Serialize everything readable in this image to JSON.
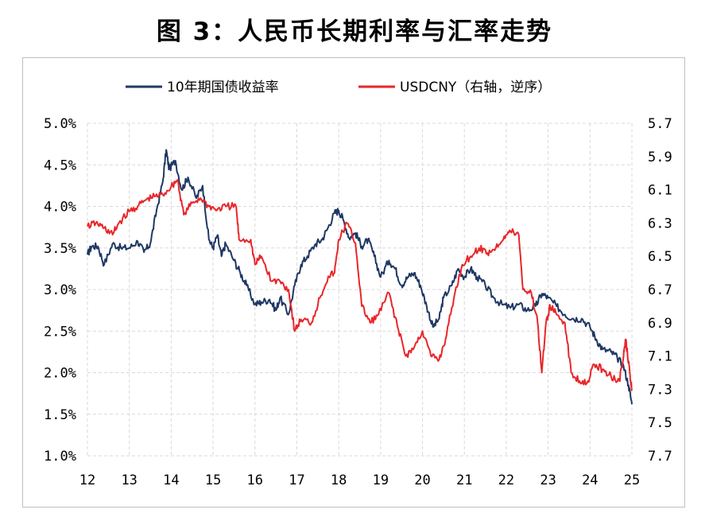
{
  "figure_title": "图 3：人民币长期利率与汇率走势",
  "chart_data": {
    "type": "line",
    "title": "图 3：人民币长期利率与汇率走势",
    "xlabel": "",
    "x_tick_labels": [
      "12",
      "13",
      "14",
      "15",
      "16",
      "17",
      "18",
      "19",
      "20",
      "21",
      "22",
      "23",
      "24",
      "25"
    ],
    "x_range": [
      2012,
      2025
    ],
    "grid": true,
    "legend": "top",
    "left_axis": {
      "label": "10年期国债收益率",
      "ylim": [
        1.0,
        5.0
      ],
      "tick_values": [
        1.0,
        1.5,
        2.0,
        2.5,
        3.0,
        3.5,
        4.0,
        4.5,
        5.0
      ],
      "tick_labels": [
        "1.0%",
        "1.5%",
        "2.0%",
        "2.5%",
        "3.0%",
        "3.5%",
        "4.0%",
        "4.5%",
        "5.0%"
      ]
    },
    "right_axis": {
      "label": "USDCNY（右轴，逆序）",
      "ylim": [
        5.7,
        7.7
      ],
      "inverted": true,
      "tick_values": [
        5.7,
        5.9,
        6.1,
        6.3,
        6.5,
        6.7,
        6.9,
        7.1,
        7.3,
        7.5,
        7.7
      ],
      "tick_labels": [
        "5.7",
        "5.9",
        "6.1",
        "6.3",
        "6.5",
        "6.7",
        "6.9",
        "7.1",
        "7.3",
        "7.5",
        "7.7"
      ]
    },
    "series": [
      {
        "name": "10年期国债收益率",
        "axis": "left",
        "color": "#1f3864",
        "points": [
          [
            2012.0,
            3.42
          ],
          [
            2012.1,
            3.52
          ],
          [
            2012.25,
            3.52
          ],
          [
            2012.4,
            3.3
          ],
          [
            2012.6,
            3.55
          ],
          [
            2012.8,
            3.5
          ],
          [
            2013.0,
            3.5
          ],
          [
            2013.2,
            3.58
          ],
          [
            2013.35,
            3.45
          ],
          [
            2013.5,
            3.55
          ],
          [
            2013.65,
            3.95
          ],
          [
            2013.8,
            4.3
          ],
          [
            2013.88,
            4.68
          ],
          [
            2013.95,
            4.45
          ],
          [
            2014.1,
            4.55
          ],
          [
            2014.25,
            4.2
          ],
          [
            2014.4,
            4.35
          ],
          [
            2014.6,
            4.1
          ],
          [
            2014.75,
            4.25
          ],
          [
            2014.9,
            3.6
          ],
          [
            2015.0,
            3.5
          ],
          [
            2015.1,
            3.65
          ],
          [
            2015.2,
            3.4
          ],
          [
            2015.3,
            3.55
          ],
          [
            2015.5,
            3.35
          ],
          [
            2015.65,
            3.2
          ],
          [
            2015.8,
            3.05
          ],
          [
            2016.0,
            2.82
          ],
          [
            2016.15,
            2.85
          ],
          [
            2016.35,
            2.88
          ],
          [
            2016.5,
            2.75
          ],
          [
            2016.6,
            2.9
          ],
          [
            2016.8,
            2.7
          ],
          [
            2016.95,
            3.05
          ],
          [
            2017.1,
            3.3
          ],
          [
            2017.25,
            3.4
          ],
          [
            2017.45,
            3.55
          ],
          [
            2017.6,
            3.6
          ],
          [
            2017.75,
            3.75
          ],
          [
            2017.9,
            3.92
          ],
          [
            2018.0,
            3.95
          ],
          [
            2018.1,
            3.85
          ],
          [
            2018.25,
            3.62
          ],
          [
            2018.4,
            3.68
          ],
          [
            2018.55,
            3.52
          ],
          [
            2018.7,
            3.6
          ],
          [
            2018.85,
            3.4
          ],
          [
            2019.0,
            3.15
          ],
          [
            2019.2,
            3.35
          ],
          [
            2019.35,
            3.25
          ],
          [
            2019.5,
            3.05
          ],
          [
            2019.65,
            3.15
          ],
          [
            2019.8,
            3.2
          ],
          [
            2019.95,
            3.05
          ],
          [
            2020.1,
            2.8
          ],
          [
            2020.25,
            2.55
          ],
          [
            2020.4,
            2.65
          ],
          [
            2020.5,
            2.9
          ],
          [
            2020.7,
            3.05
          ],
          [
            2020.85,
            3.25
          ],
          [
            2021.0,
            3.15
          ],
          [
            2021.15,
            3.25
          ],
          [
            2021.3,
            3.15
          ],
          [
            2021.5,
            3.05
          ],
          [
            2021.7,
            2.9
          ],
          [
            2021.9,
            2.82
          ],
          [
            2022.1,
            2.78
          ],
          [
            2022.3,
            2.82
          ],
          [
            2022.5,
            2.75
          ],
          [
            2022.7,
            2.8
          ],
          [
            2022.85,
            2.95
          ],
          [
            2023.0,
            2.9
          ],
          [
            2023.2,
            2.8
          ],
          [
            2023.4,
            2.7
          ],
          [
            2023.6,
            2.65
          ],
          [
            2023.8,
            2.65
          ],
          [
            2024.0,
            2.55
          ],
          [
            2024.15,
            2.4
          ],
          [
            2024.3,
            2.28
          ],
          [
            2024.5,
            2.25
          ],
          [
            2024.65,
            2.18
          ],
          [
            2024.8,
            2.08
          ],
          [
            2024.92,
            1.85
          ],
          [
            2025.0,
            1.62
          ]
        ]
      },
      {
        "name": "USDCNY（右轴，逆序）",
        "axis": "right",
        "color": "#e8262a",
        "points": [
          [
            2012.0,
            6.32
          ],
          [
            2012.2,
            6.3
          ],
          [
            2012.4,
            6.33
          ],
          [
            2012.6,
            6.37
          ],
          [
            2012.75,
            6.3
          ],
          [
            2013.0,
            6.23
          ],
          [
            2013.2,
            6.2
          ],
          [
            2013.4,
            6.16
          ],
          [
            2013.6,
            6.14
          ],
          [
            2013.8,
            6.13
          ],
          [
            2014.0,
            6.08
          ],
          [
            2014.15,
            6.04
          ],
          [
            2014.3,
            6.25
          ],
          [
            2014.5,
            6.18
          ],
          [
            2014.7,
            6.15
          ],
          [
            2014.9,
            6.2
          ],
          [
            2015.1,
            6.22
          ],
          [
            2015.3,
            6.2
          ],
          [
            2015.55,
            6.2
          ],
          [
            2015.62,
            6.4
          ],
          [
            2015.9,
            6.4
          ],
          [
            2016.0,
            6.55
          ],
          [
            2016.15,
            6.5
          ],
          [
            2016.4,
            6.65
          ],
          [
            2016.6,
            6.65
          ],
          [
            2016.8,
            6.7
          ],
          [
            2016.95,
            6.95
          ],
          [
            2017.1,
            6.88
          ],
          [
            2017.35,
            6.9
          ],
          [
            2017.55,
            6.75
          ],
          [
            2017.75,
            6.62
          ],
          [
            2017.9,
            6.6
          ],
          [
            2018.0,
            6.4
          ],
          [
            2018.2,
            6.3
          ],
          [
            2018.4,
            6.42
          ],
          [
            2018.55,
            6.8
          ],
          [
            2018.75,
            6.9
          ],
          [
            2018.95,
            6.85
          ],
          [
            2019.2,
            6.72
          ],
          [
            2019.4,
            6.92
          ],
          [
            2019.6,
            7.1
          ],
          [
            2019.8,
            7.05
          ],
          [
            2020.0,
            6.95
          ],
          [
            2020.2,
            7.1
          ],
          [
            2020.4,
            7.12
          ],
          [
            2020.55,
            7.0
          ],
          [
            2020.75,
            6.75
          ],
          [
            2020.95,
            6.55
          ],
          [
            2021.15,
            6.5
          ],
          [
            2021.35,
            6.45
          ],
          [
            2021.55,
            6.48
          ],
          [
            2021.75,
            6.45
          ],
          [
            2021.95,
            6.38
          ],
          [
            2022.1,
            6.35
          ],
          [
            2022.3,
            6.37
          ],
          [
            2022.4,
            6.7
          ],
          [
            2022.6,
            6.72
          ],
          [
            2022.75,
            6.9
          ],
          [
            2022.85,
            7.2
          ],
          [
            2022.95,
            6.9
          ],
          [
            2023.05,
            6.8
          ],
          [
            2023.2,
            6.85
          ],
          [
            2023.4,
            6.9
          ],
          [
            2023.55,
            7.2
          ],
          [
            2023.75,
            7.25
          ],
          [
            2023.95,
            7.25
          ],
          [
            2024.1,
            7.15
          ],
          [
            2024.3,
            7.18
          ],
          [
            2024.5,
            7.22
          ],
          [
            2024.7,
            7.25
          ],
          [
            2024.8,
            7.1
          ],
          [
            2024.85,
            7.0
          ],
          [
            2024.95,
            7.2
          ],
          [
            2025.0,
            7.3
          ]
        ]
      }
    ]
  }
}
